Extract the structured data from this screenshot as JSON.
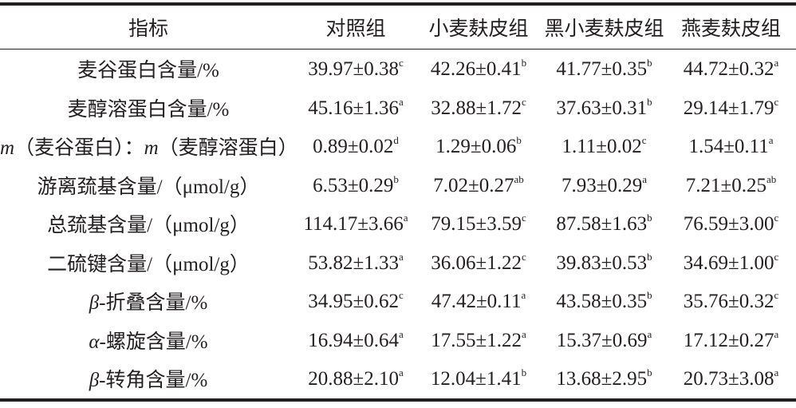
{
  "table": {
    "header": [
      "指标",
      "对照组",
      "小麦麸皮组",
      "黑小麦麸皮组",
      "燕麦麸皮组"
    ],
    "rows": [
      {
        "label": "麦谷蛋白含量/%",
        "cells": [
          [
            "39.97±0.38",
            "c"
          ],
          [
            "42.26±0.41",
            "b"
          ],
          [
            "41.77±0.35",
            "b"
          ],
          [
            "44.72±0.32",
            "a"
          ]
        ]
      },
      {
        "label": "麦醇溶蛋白含量/%",
        "cells": [
          [
            "45.16±1.36",
            "a"
          ],
          [
            "32.88±1.72",
            "c"
          ],
          [
            "37.63±0.31",
            "b"
          ],
          [
            "29.14±1.79",
            "c"
          ]
        ]
      },
      {
        "label": "m（麦谷蛋白）：m（麦醇溶蛋白）",
        "cells": [
          [
            "0.89±0.02",
            "d"
          ],
          [
            "1.29±0.06",
            "b"
          ],
          [
            "1.11±0.02",
            "c"
          ],
          [
            "1.54±0.11",
            "a"
          ]
        ]
      },
      {
        "label": "游离巯基含量/（μmol/g）",
        "cells": [
          [
            "6.53±0.29",
            "b"
          ],
          [
            "7.02±0.27",
            "ab"
          ],
          [
            "7.93±0.29",
            "a"
          ],
          [
            "7.21±0.25",
            "ab"
          ]
        ]
      },
      {
        "label": "总巯基含量/（μmol/g）",
        "cells": [
          [
            "114.17±3.66",
            "a"
          ],
          [
            "79.15±3.59",
            "c"
          ],
          [
            "87.58±1.63",
            "b"
          ],
          [
            "76.59±3.00",
            "c"
          ]
        ]
      },
      {
        "label": "二硫键含量/（μmol/g）",
        "cells": [
          [
            "53.82±1.33",
            "a"
          ],
          [
            "36.06±1.22",
            "c"
          ],
          [
            "39.83±0.53",
            "b"
          ],
          [
            "34.69±1.00",
            "c"
          ]
        ]
      },
      {
        "label": "β-折叠含量/%",
        "cells": [
          [
            "34.95±0.62",
            "c"
          ],
          [
            "47.42±0.11",
            "a"
          ],
          [
            "43.58±0.35",
            "b"
          ],
          [
            "35.76±0.32",
            "c"
          ]
        ]
      },
      {
        "label": "α-螺旋含量/%",
        "cells": [
          [
            "16.94±0.64",
            "a"
          ],
          [
            "17.55±1.22",
            "a"
          ],
          [
            "15.37±0.69",
            "a"
          ],
          [
            "17.12±0.27",
            "a"
          ]
        ]
      },
      {
        "label": "β-转角含量/%",
        "cells": [
          [
            "20.88±2.10",
            "a"
          ],
          [
            "12.04±1.41",
            "b"
          ],
          [
            "13.68±2.95",
            "b"
          ],
          [
            "20.73±3.08",
            "a"
          ]
        ]
      }
    ]
  }
}
